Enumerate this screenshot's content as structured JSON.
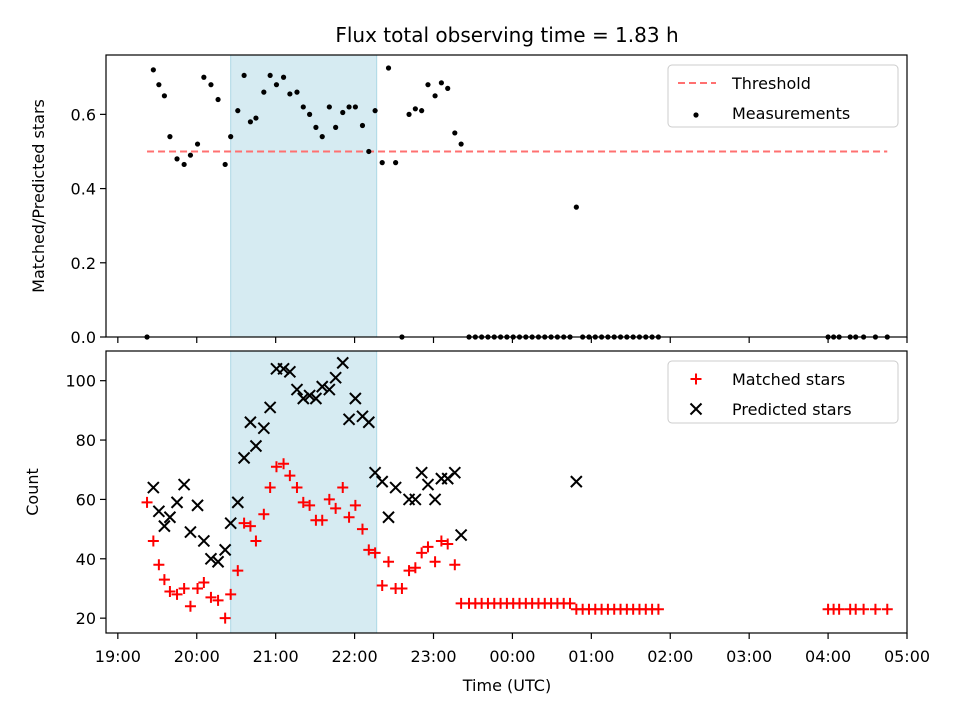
{
  "chart_data": {
    "title": "Flux total observing time = 1.83 h",
    "xlabel": "Time (UTC)",
    "x_unit": "hours after 19:00 UTC on the first night",
    "xlim": [
      -0.15,
      10.0
    ],
    "x_ticks": [
      {
        "value": 0,
        "label": "19:00"
      },
      {
        "value": 1,
        "label": "20:00"
      },
      {
        "value": 2,
        "label": "21:00"
      },
      {
        "value": 3,
        "label": "22:00"
      },
      {
        "value": 4,
        "label": "23:00"
      },
      {
        "value": 5,
        "label": "00:00"
      },
      {
        "value": 6,
        "label": "01:00"
      },
      {
        "value": 7,
        "label": "02:00"
      },
      {
        "value": 8,
        "label": "03:00"
      },
      {
        "value": 9,
        "label": "04:00"
      },
      {
        "value": 10,
        "label": "05:00"
      }
    ],
    "shaded_span": {
      "start": 1.43,
      "end": 3.28,
      "color": "#add8e6"
    },
    "panels": [
      {
        "type": "scatter",
        "ylabel": "Matched/Predicted stars",
        "ylim": [
          0,
          0.76
        ],
        "y_ticks": [
          0.0,
          0.2,
          0.4,
          0.6
        ],
        "y_tick_labels": [
          "0.0",
          "0.2",
          "0.4",
          "0.6"
        ],
        "legend": {
          "placement": "upper right",
          "entries": [
            "Threshold",
            "Measurements"
          ]
        },
        "threshold": {
          "name": "Threshold",
          "value": 0.5,
          "x_start": 0.37,
          "x_end": 9.75,
          "color": "#ff7070"
        },
        "series": [
          {
            "name": "Measurements",
            "marker": "dot",
            "color": "#000000",
            "points": [
              [
                0.37,
                0.0
              ],
              [
                0.45,
                0.72
              ],
              [
                0.52,
                0.68
              ],
              [
                0.59,
                0.65
              ],
              [
                0.66,
                0.54
              ],
              [
                0.75,
                0.48
              ],
              [
                0.84,
                0.465
              ],
              [
                0.92,
                0.49
              ],
              [
                1.01,
                0.52
              ],
              [
                1.09,
                0.7
              ],
              [
                1.18,
                0.68
              ],
              [
                1.27,
                0.64
              ],
              [
                1.36,
                0.465
              ],
              [
                1.43,
                0.54
              ],
              [
                1.52,
                0.61
              ],
              [
                1.6,
                0.705
              ],
              [
                1.68,
                0.58
              ],
              [
                1.75,
                0.59
              ],
              [
                1.85,
                0.66
              ],
              [
                1.93,
                0.705
              ],
              [
                2.01,
                0.68
              ],
              [
                2.1,
                0.7
              ],
              [
                2.18,
                0.655
              ],
              [
                2.27,
                0.66
              ],
              [
                2.35,
                0.62
              ],
              [
                2.43,
                0.6
              ],
              [
                2.51,
                0.565
              ],
              [
                2.59,
                0.54
              ],
              [
                2.68,
                0.62
              ],
              [
                2.76,
                0.565
              ],
              [
                2.85,
                0.605
              ],
              [
                2.93,
                0.62
              ],
              [
                3.01,
                0.62
              ],
              [
                3.1,
                0.57
              ],
              [
                3.18,
                0.5
              ],
              [
                3.26,
                0.61
              ],
              [
                3.35,
                0.47
              ],
              [
                3.43,
                0.725
              ],
              [
                3.52,
                0.47
              ],
              [
                3.6,
                0.0
              ],
              [
                3.69,
                0.6
              ],
              [
                3.77,
                0.615
              ],
              [
                3.85,
                0.61
              ],
              [
                3.93,
                0.68
              ],
              [
                4.02,
                0.65
              ],
              [
                4.1,
                0.685
              ],
              [
                4.18,
                0.67
              ],
              [
                4.27,
                0.55
              ],
              [
                4.35,
                0.52
              ],
              [
                4.45,
                0.0
              ],
              [
                4.53,
                0.0
              ],
              [
                4.61,
                0.0
              ],
              [
                4.69,
                0.0
              ],
              [
                4.77,
                0.0
              ],
              [
                4.85,
                0.0
              ],
              [
                4.93,
                0.0
              ],
              [
                5.01,
                0.0
              ],
              [
                5.09,
                0.0
              ],
              [
                5.17,
                0.0
              ],
              [
                5.25,
                0.0
              ],
              [
                5.33,
                0.0
              ],
              [
                5.41,
                0.0
              ],
              [
                5.49,
                0.0
              ],
              [
                5.57,
                0.0
              ],
              [
                5.65,
                0.0
              ],
              [
                5.73,
                0.0
              ],
              [
                5.81,
                0.35
              ],
              [
                5.89,
                0.0
              ],
              [
                5.97,
                0.0
              ],
              [
                6.05,
                0.0
              ],
              [
                6.13,
                0.0
              ],
              [
                6.21,
                0.0
              ],
              [
                6.29,
                0.0
              ],
              [
                6.37,
                0.0
              ],
              [
                6.45,
                0.0
              ],
              [
                6.53,
                0.0
              ],
              [
                6.61,
                0.0
              ],
              [
                6.69,
                0.0
              ],
              [
                6.77,
                0.0
              ],
              [
                6.85,
                0.0
              ],
              [
                9.0,
                0.0
              ],
              [
                9.07,
                0.0
              ],
              [
                9.14,
                0.0
              ],
              [
                9.28,
                0.0
              ],
              [
                9.35,
                0.0
              ],
              [
                9.45,
                0.0
              ],
              [
                9.6,
                0.0
              ],
              [
                9.75,
                0.0
              ]
            ]
          }
        ]
      },
      {
        "type": "scatter",
        "ylabel": "Count",
        "ylim": [
          15,
          110
        ],
        "y_ticks": [
          20,
          40,
          60,
          80,
          100
        ],
        "y_tick_labels": [
          "20",
          "40",
          "60",
          "80",
          "100"
        ],
        "legend": {
          "placement": "upper right",
          "entries": [
            "Matched stars",
            "Predicted stars"
          ]
        },
        "series": [
          {
            "name": "Matched stars",
            "marker": "plus",
            "color": "#ff0000",
            "points": [
              [
                0.37,
                59
              ],
              [
                0.45,
                46
              ],
              [
                0.52,
                38
              ],
              [
                0.59,
                33
              ],
              [
                0.66,
                29
              ],
              [
                0.75,
                28
              ],
              [
                0.84,
                30
              ],
              [
                0.92,
                24
              ],
              [
                1.01,
                30
              ],
              [
                1.09,
                32
              ],
              [
                1.18,
                27
              ],
              [
                1.27,
                26
              ],
              [
                1.36,
                20
              ],
              [
                1.43,
                28
              ],
              [
                1.52,
                36
              ],
              [
                1.6,
                52
              ],
              [
                1.68,
                51
              ],
              [
                1.75,
                46
              ],
              [
                1.85,
                55
              ],
              [
                1.93,
                64
              ],
              [
                2.01,
                71
              ],
              [
                2.1,
                72
              ],
              [
                2.18,
                68
              ],
              [
                2.27,
                64
              ],
              [
                2.35,
                59
              ],
              [
                2.43,
                58
              ],
              [
                2.51,
                53
              ],
              [
                2.59,
                53
              ],
              [
                2.68,
                60
              ],
              [
                2.76,
                57
              ],
              [
                2.85,
                64
              ],
              [
                2.93,
                54
              ],
              [
                3.01,
                58
              ],
              [
                3.1,
                50
              ],
              [
                3.18,
                43
              ],
              [
                3.26,
                42
              ],
              [
                3.35,
                31
              ],
              [
                3.43,
                39
              ],
              [
                3.52,
                30
              ],
              [
                3.6,
                30
              ],
              [
                3.69,
                36
              ],
              [
                3.77,
                37
              ],
              [
                3.85,
                42
              ],
              [
                3.93,
                44
              ],
              [
                4.02,
                39
              ],
              [
                4.1,
                46
              ],
              [
                4.18,
                45
              ],
              [
                4.27,
                38
              ],
              [
                4.35,
                25
              ],
              [
                4.45,
                25
              ],
              [
                4.53,
                25
              ],
              [
                4.61,
                25
              ],
              [
                4.69,
                25
              ],
              [
                4.77,
                25
              ],
              [
                4.85,
                25
              ],
              [
                4.93,
                25
              ],
              [
                5.01,
                25
              ],
              [
                5.09,
                25
              ],
              [
                5.17,
                25
              ],
              [
                5.25,
                25
              ],
              [
                5.33,
                25
              ],
              [
                5.41,
                25
              ],
              [
                5.49,
                25
              ],
              [
                5.57,
                25
              ],
              [
                5.65,
                25
              ],
              [
                5.73,
                25
              ],
              [
                5.81,
                23
              ],
              [
                5.89,
                23
              ],
              [
                5.97,
                23
              ],
              [
                6.05,
                23
              ],
              [
                6.13,
                23
              ],
              [
                6.21,
                23
              ],
              [
                6.29,
                23
              ],
              [
                6.37,
                23
              ],
              [
                6.45,
                23
              ],
              [
                6.53,
                23
              ],
              [
                6.61,
                23
              ],
              [
                6.69,
                23
              ],
              [
                6.77,
                23
              ],
              [
                6.85,
                23
              ],
              [
                9.0,
                23
              ],
              [
                9.07,
                23
              ],
              [
                9.14,
                23
              ],
              [
                9.28,
                23
              ],
              [
                9.35,
                23
              ],
              [
                9.45,
                23
              ],
              [
                9.6,
                23
              ],
              [
                9.75,
                23
              ]
            ]
          },
          {
            "name": "Predicted stars",
            "marker": "x",
            "color": "#000000",
            "points": [
              [
                0.45,
                64
              ],
              [
                0.52,
                56
              ],
              [
                0.59,
                51
              ],
              [
                0.66,
                54
              ],
              [
                0.75,
                59
              ],
              [
                0.84,
                65
              ],
              [
                0.92,
                49
              ],
              [
                1.01,
                58
              ],
              [
                1.09,
                46
              ],
              [
                1.18,
                40
              ],
              [
                1.27,
                39
              ],
              [
                1.36,
                43
              ],
              [
                1.43,
                52
              ],
              [
                1.52,
                59
              ],
              [
                1.6,
                74
              ],
              [
                1.68,
                86
              ],
              [
                1.75,
                78
              ],
              [
                1.85,
                84
              ],
              [
                1.93,
                91
              ],
              [
                2.01,
                104
              ],
              [
                2.1,
                104
              ],
              [
                2.18,
                103
              ],
              [
                2.27,
                97
              ],
              [
                2.35,
                94
              ],
              [
                2.43,
                95
              ],
              [
                2.51,
                94
              ],
              [
                2.59,
                98
              ],
              [
                2.68,
                97
              ],
              [
                2.76,
                101
              ],
              [
                2.85,
                106
              ],
              [
                2.93,
                87
              ],
              [
                3.01,
                94
              ],
              [
                3.1,
                88
              ],
              [
                3.18,
                86
              ],
              [
                3.26,
                69
              ],
              [
                3.35,
                66
              ],
              [
                3.43,
                54
              ],
              [
                3.52,
                64
              ],
              [
                3.69,
                60
              ],
              [
                3.77,
                60
              ],
              [
                3.85,
                69
              ],
              [
                3.93,
                65
              ],
              [
                4.02,
                60
              ],
              [
                4.1,
                67
              ],
              [
                4.18,
                67
              ],
              [
                4.27,
                69
              ],
              [
                4.35,
                48
              ],
              [
                5.81,
                66
              ]
            ]
          }
        ]
      }
    ]
  }
}
